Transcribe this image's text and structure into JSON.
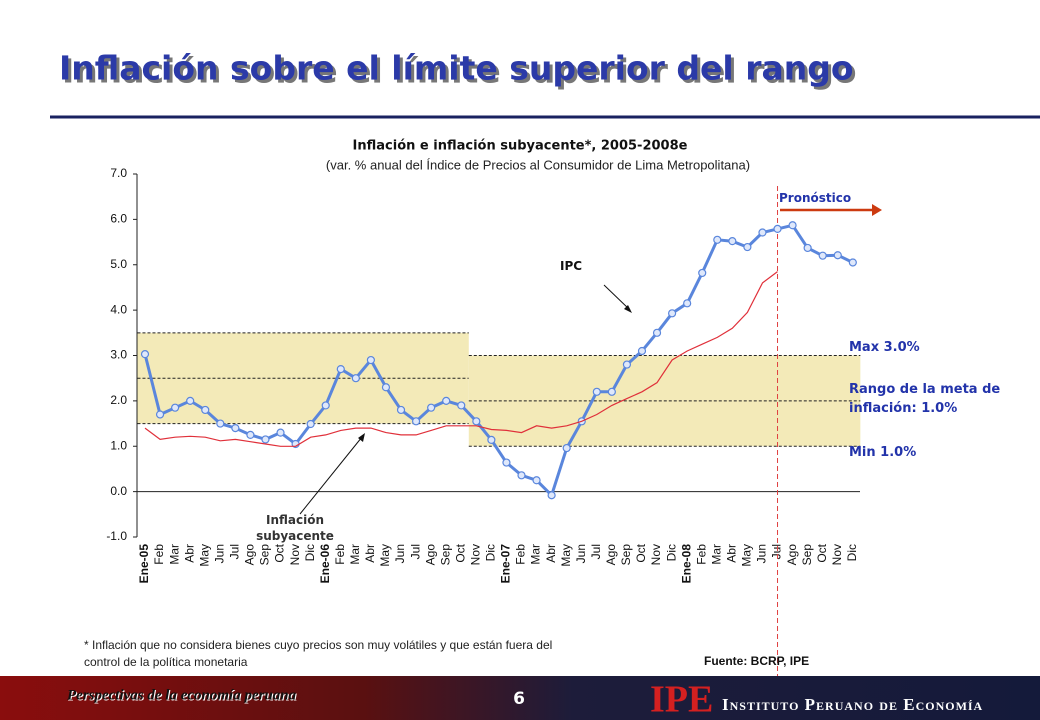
{
  "header": {
    "title": "Inflación sobre el límite superior del rango"
  },
  "chart_data": {
    "type": "line",
    "title": "Inflación e inflación subyacente*, 2005-2008e",
    "subtitle": "(var. % anual del Índice de Precios al Consumidor de Lima Metropolitana)",
    "categories": [
      "Ene-05",
      "Feb",
      "Mar",
      "Abr",
      "May",
      "Jun",
      "Jul",
      "Ago",
      "Sep",
      "Oct",
      "Nov",
      "Dic",
      "Ene-06",
      "Feb",
      "Mar",
      "Abr",
      "May",
      "Jun",
      "Jul",
      "Ago",
      "Sep",
      "Oct",
      "Nov",
      "Dic",
      "Ene-07",
      "Feb",
      "Mar",
      "Abr",
      "May",
      "Jun",
      "Jul",
      "Ago",
      "Sep",
      "Oct",
      "Nov",
      "Dic",
      "Ene-08",
      "Feb",
      "Mar",
      "Abr",
      "May",
      "Jun",
      "Jul",
      "Ago",
      "Sep",
      "Oct",
      "Nov",
      "Dic"
    ],
    "series": [
      {
        "name": "IPC",
        "color": "#5a86dc",
        "values": [
          3.03,
          1.7,
          1.85,
          2.0,
          1.8,
          1.5,
          1.4,
          1.25,
          1.15,
          1.3,
          1.05,
          1.49,
          1.9,
          2.7,
          2.5,
          2.9,
          2.3,
          1.8,
          1.55,
          1.85,
          2.0,
          1.9,
          1.55,
          1.14,
          0.64,
          0.36,
          0.25,
          -0.08,
          0.96,
          1.55,
          2.2,
          2.2,
          2.8,
          3.1,
          3.5,
          3.93,
          4.15,
          4.82,
          5.55,
          5.52,
          5.39,
          5.71,
          5.79,
          5.87,
          5.37,
          5.2,
          5.21,
          5.05
        ]
      },
      {
        "name": "Inflación subyacente",
        "color": "#e0303a",
        "values": [
          1.4,
          1.15,
          1.2,
          1.22,
          1.2,
          1.12,
          1.15,
          1.1,
          1.05,
          1.0,
          1.0,
          1.2,
          1.25,
          1.35,
          1.4,
          1.4,
          1.3,
          1.25,
          1.25,
          1.35,
          1.45,
          1.45,
          1.45,
          1.37,
          1.35,
          1.3,
          1.45,
          1.4,
          1.45,
          1.55,
          1.7,
          1.9,
          2.05,
          2.2,
          2.4,
          2.9,
          3.1,
          3.25,
          3.4,
          3.6,
          3.95,
          4.6,
          4.85,
          null,
          null,
          null,
          null,
          null
        ]
      }
    ],
    "ylim": [
      -1,
      7
    ],
    "yticks": [
      {
        "value": -1,
        "label": "-1.0"
      },
      {
        "value": 0,
        "label": "0.0"
      },
      {
        "value": 1,
        "label": "1.0"
      },
      {
        "value": 2,
        "label": "2.0"
      },
      {
        "value": 3,
        "label": "3.0"
      },
      {
        "value": 4,
        "label": "4.0"
      },
      {
        "value": 5,
        "label": "5.0"
      },
      {
        "value": 6,
        "label": "6.0"
      },
      {
        "value": 7,
        "label": "7.0"
      }
    ],
    "bands": [
      {
        "x_range": [
          -0.5,
          21.5
        ],
        "low": 1.5,
        "mid": 2.5,
        "high": 3.5
      },
      {
        "x_range": [
          21.5,
          47.5
        ],
        "low": 1,
        "mid": 2,
        "high": 3
      }
    ],
    "forecast": {
      "x": 42,
      "label": "Pronóstico"
    },
    "annotations": {
      "max": "Max 3.0%",
      "range": "Rango de la meta de inflación: 1.0%",
      "min": "Min 1.0%"
    },
    "footnote": "* Inflación que no considera bienes cuyo precios son muy volátiles y que están fuera del control de la política monetaria",
    "source": "Fuente: BCRP, IPE"
  },
  "footer": {
    "left": "Perspectivas de la economía peruana",
    "page": "6",
    "logo": "IPE",
    "institute": "Instituto Peruano de Economía"
  }
}
